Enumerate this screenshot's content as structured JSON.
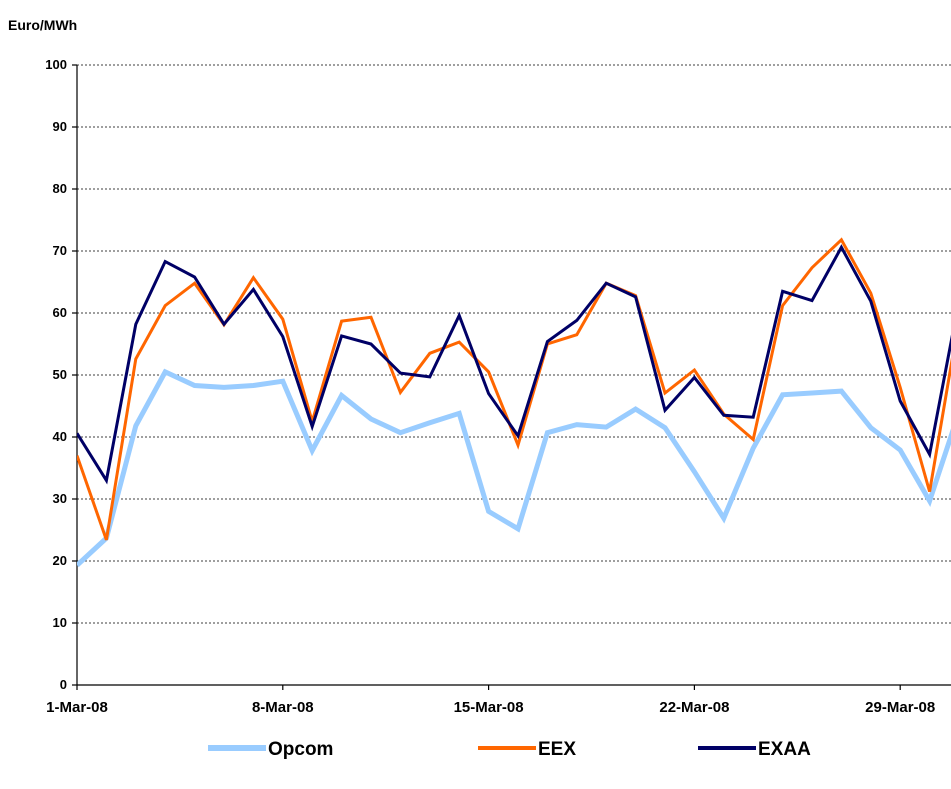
{
  "chart_data": {
    "type": "line",
    "title": "",
    "ylabel": "Euro/MWh",
    "xlabel": "",
    "ylim": [
      0,
      100
    ],
    "yticks": [
      0,
      10,
      20,
      30,
      40,
      50,
      60,
      70,
      80,
      90,
      100
    ],
    "x": [
      "1-Mar-08",
      "2-Mar-08",
      "3-Mar-08",
      "4-Mar-08",
      "5-Mar-08",
      "6-Mar-08",
      "7-Mar-08",
      "8-Mar-08",
      "9-Mar-08",
      "10-Mar-08",
      "11-Mar-08",
      "12-Mar-08",
      "13-Mar-08",
      "14-Mar-08",
      "15-Mar-08",
      "16-Mar-08",
      "17-Mar-08",
      "18-Mar-08",
      "19-Mar-08",
      "20-Mar-08",
      "21-Mar-08",
      "22-Mar-08",
      "23-Mar-08",
      "24-Mar-08",
      "25-Mar-08",
      "26-Mar-08",
      "27-Mar-08",
      "28-Mar-08",
      "29-Mar-08",
      "30-Mar-08",
      "31-Mar-08"
    ],
    "xtick_labels": [
      "1-Mar-08",
      "8-Mar-08",
      "15-Mar-08",
      "22-Mar-08",
      "29-Mar-08"
    ],
    "xtick_index": [
      0,
      7,
      14,
      21,
      28
    ],
    "grid": true,
    "legend_position": "bottom",
    "series": [
      {
        "name": "Opcom",
        "color": "#99ccff",
        "width": 5,
        "values": [
          19.3,
          23.7,
          41.8,
          50.5,
          48.3,
          48.0,
          48.3,
          49.0,
          37.8,
          46.7,
          42.9,
          40.7,
          42.3,
          43.8,
          28.0,
          25.2,
          40.7,
          42.0,
          41.6,
          44.5,
          41.5,
          34.4,
          26.9,
          38.2,
          46.8,
          47.1,
          47.4,
          41.5,
          37.9,
          29.7,
          44.0
        ]
      },
      {
        "name": "EEX",
        "color": "#ff6600",
        "width": 3,
        "values": [
          37.0,
          23.4,
          52.6,
          61.2,
          64.8,
          58.1,
          65.7,
          59.0,
          42.5,
          58.7,
          59.3,
          47.2,
          53.5,
          55.3,
          50.5,
          38.7,
          55.0,
          56.5,
          64.8,
          62.8,
          47.1,
          50.8,
          43.7,
          39.6,
          61.2,
          67.3,
          71.8,
          63.2,
          48.0,
          31.2,
          59.0
        ]
      },
      {
        "name": "EXAA",
        "color": "#000066",
        "width": 3,
        "values": [
          40.6,
          33.0,
          58.2,
          68.3,
          65.8,
          58.2,
          63.8,
          56.2,
          41.7,
          56.3,
          55.0,
          50.3,
          49.7,
          59.6,
          47.0,
          40.2,
          55.4,
          58.8,
          64.8,
          62.6,
          44.3,
          49.6,
          43.5,
          43.2,
          63.5,
          62.0,
          70.6,
          61.9,
          45.8,
          37.2,
          62.0
        ]
      }
    ]
  }
}
